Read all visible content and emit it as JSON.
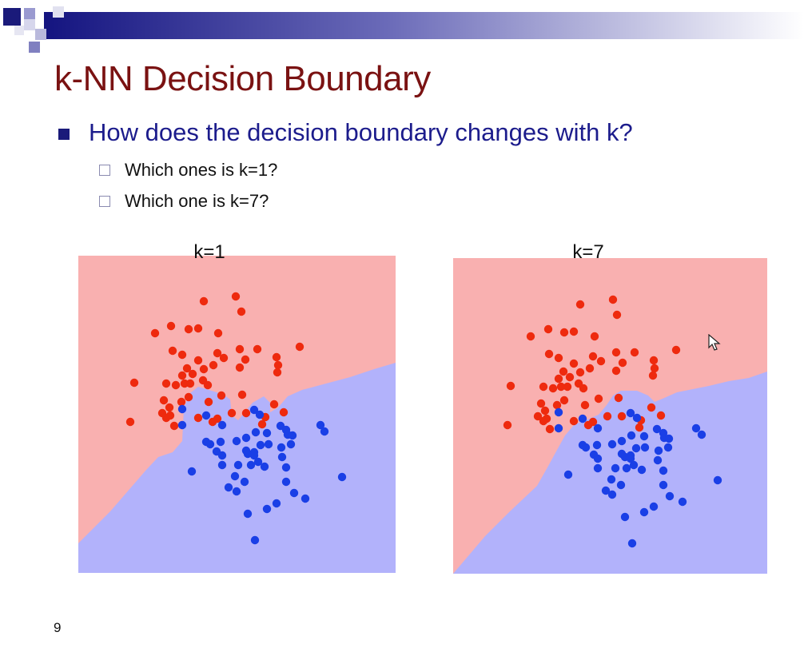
{
  "slide": {
    "title": "k-NN Decision Boundary",
    "bullet": "How does the decision boundary changes with k?",
    "sub_bullets": [
      "Which ones is k=1?",
      "Which one is k=7?"
    ],
    "page_number": "9"
  },
  "plots": [
    {
      "title": "k=1"
    },
    {
      "title": "k=7"
    }
  ],
  "colors": {
    "title": "#7a1212",
    "bullet_text": "#1c1c8c",
    "class_red_point": "#ee2a0e",
    "class_blue_point": "#1a3fe6",
    "region_red": "#f9b0b0",
    "region_blue": "#b2b2fb"
  },
  "icons": {
    "cursor": "mouse-pointer-icon"
  }
}
